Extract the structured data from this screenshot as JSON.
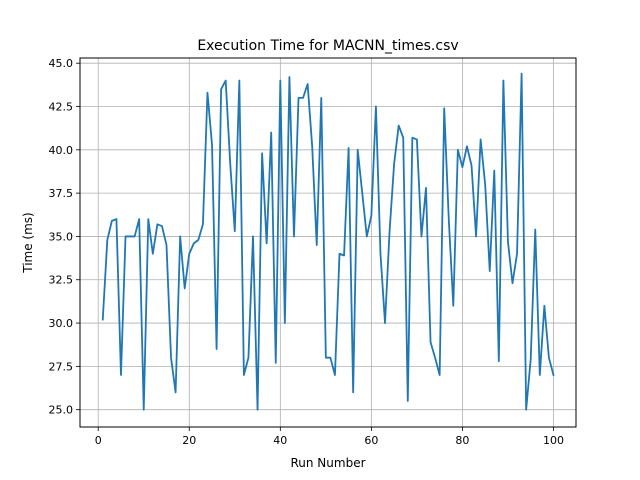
{
  "chart_data": {
    "type": "line",
    "title": "Execution Time for MACNN_times.csv",
    "xlabel": "Run Number",
    "ylabel": "Time (ms)",
    "xlim": [
      -4,
      104.95
    ],
    "ylim": [
      24.0,
      45.3
    ],
    "xticks": [
      0,
      20,
      40,
      60,
      80,
      100
    ],
    "yticks": [
      25.0,
      27.5,
      30.0,
      32.5,
      35.0,
      37.5,
      40.0,
      42.5,
      45.0
    ],
    "ytick_labels": [
      "25.0",
      "27.5",
      "30.0",
      "32.5",
      "35.0",
      "37.5",
      "40.0",
      "42.5",
      "45.0"
    ],
    "grid": true,
    "line_color": "#1f77b4",
    "series": [
      {
        "x": [
          1,
          2,
          3,
          4,
          5,
          6,
          7,
          8,
          9,
          10,
          11,
          12,
          13,
          14,
          15,
          16,
          17,
          18,
          19,
          20,
          21,
          22,
          23,
          24,
          25,
          26,
          27,
          28,
          29,
          30,
          31,
          32,
          33,
          34,
          35,
          36,
          37,
          38,
          39,
          40,
          41,
          42,
          43,
          44,
          45,
          46,
          47,
          48,
          49,
          50,
          51,
          52,
          53,
          54,
          55,
          56,
          57,
          58,
          59,
          60,
          61,
          62,
          63,
          64,
          65,
          66,
          67,
          68,
          69,
          70,
          71,
          72,
          73,
          74,
          75,
          76,
          77,
          78,
          79,
          80,
          81,
          82,
          83,
          84,
          85,
          86,
          87,
          88,
          89,
          90,
          91,
          92,
          93,
          94,
          95,
          96,
          97,
          98,
          99,
          100
        ],
        "values": [
          30.2,
          34.8,
          35.9,
          36.0,
          27.0,
          35.0,
          35.0,
          35.0,
          36.0,
          25.0,
          36.0,
          34.0,
          35.7,
          35.6,
          34.5,
          28.0,
          26.0,
          35.0,
          32.0,
          34.0,
          34.6,
          34.8,
          35.7,
          43.3,
          40.3,
          28.5,
          43.5,
          44.0,
          39.2,
          35.3,
          44.0,
          27.0,
          28.0,
          35.0,
          25.0,
          39.8,
          34.6,
          41.0,
          27.7,
          44.0,
          30.0,
          44.2,
          35.0,
          43.0,
          43.0,
          43.8,
          40.2,
          34.5,
          43.0,
          28.0,
          28.0,
          27.0,
          34.0,
          33.9,
          40.1,
          26.0,
          40.0,
          37.5,
          35.0,
          36.2,
          42.5,
          34.0,
          30.0,
          35.3,
          39.2,
          41.4,
          40.7,
          25.5,
          40.7,
          40.6,
          35.0,
          37.8,
          28.9,
          28.0,
          27.0,
          42.4,
          36.0,
          31.0,
          40.0,
          39.0,
          40.2,
          39.1,
          35.0,
          40.6,
          38.0,
          33.0,
          38.8,
          27.8,
          44.0,
          34.7,
          32.3,
          34.0,
          44.4,
          25.0,
          27.9,
          35.4,
          27.0,
          31.0,
          28.0,
          27.0
        ]
      }
    ]
  }
}
